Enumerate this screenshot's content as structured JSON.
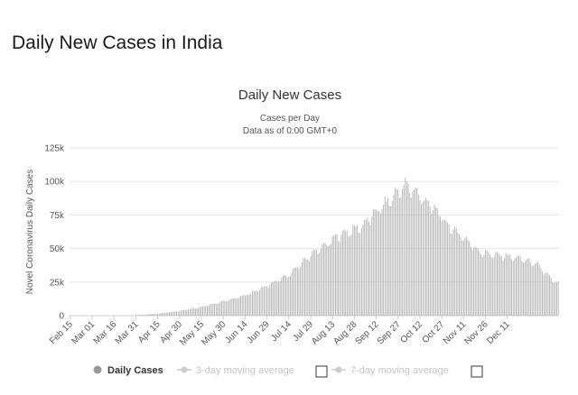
{
  "page": {
    "heading": "Daily New Cases in India"
  },
  "chart_data": {
    "type": "bar",
    "title": "Daily New Cases",
    "subtitle_lines": [
      "Cases per Day",
      "Data as of 0:00 GMT+0"
    ],
    "ylabel": "Novel Coronavirus Daily Cases",
    "xlabel": "",
    "ylim": [
      0,
      125000
    ],
    "y_ticks": [
      0,
      25000,
      50000,
      75000,
      100000,
      125000
    ],
    "y_tick_labels": [
      "0",
      "25k",
      "50k",
      "75k",
      "100k",
      "125k"
    ],
    "x_tick_labels": [
      "Feb 15",
      "Mar 01",
      "Mar 16",
      "Mar 31",
      "Apr 15",
      "Apr 30",
      "May 15",
      "May 30",
      "Jun 14",
      "Jun 29",
      "Jul 14",
      "Jul 29",
      "Aug 13",
      "Aug 28",
      "Sep 12",
      "Sep 27",
      "Oct 12",
      "Oct 27",
      "Nov 11",
      "Nov 26",
      "Dec 11"
    ],
    "x_tick_every_days": 15,
    "grid": true,
    "bar_color": "#b3b3b3",
    "series_name": "Daily Cases",
    "trend_keyframes_day_value": [
      [
        0,
        0
      ],
      [
        40,
        0
      ],
      [
        45,
        300
      ],
      [
        60,
        1500
      ],
      [
        75,
        3500
      ],
      [
        90,
        6500
      ],
      [
        105,
        10500
      ],
      [
        120,
        15000
      ],
      [
        135,
        22000
      ],
      [
        150,
        30000
      ],
      [
        165,
        45000
      ],
      [
        175,
        52000
      ],
      [
        185,
        60000
      ],
      [
        195,
        64000
      ],
      [
        200,
        66000
      ],
      [
        210,
        77000
      ],
      [
        220,
        86000
      ],
      [
        225,
        92000
      ],
      [
        230,
        96000
      ],
      [
        235,
        94000
      ],
      [
        240,
        88000
      ],
      [
        250,
        79000
      ],
      [
        260,
        66000
      ],
      [
        270,
        58000
      ],
      [
        280,
        48000
      ],
      [
        290,
        45000
      ],
      [
        300,
        44000
      ],
      [
        310,
        42000
      ],
      [
        320,
        38000
      ],
      [
        326,
        32000
      ],
      [
        331,
        26000
      ],
      [
        335,
        24000
      ]
    ],
    "bar_count": 336,
    "legend": [
      {
        "label": "Daily Cases",
        "color": "#999999",
        "active": true
      },
      {
        "label": "3-day moving average",
        "color": "#cccccc",
        "active": false
      },
      {
        "label": "7-day moving average",
        "color": "#cccccc",
        "active": false
      }
    ]
  }
}
